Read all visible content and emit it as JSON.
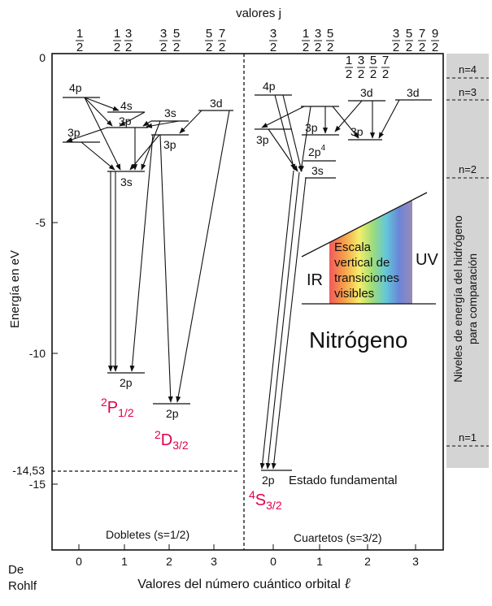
{
  "top_label": "valores j",
  "j_groups_doublets": [
    {
      "nums": [
        "1"
      ],
      "den": "2"
    },
    {
      "nums": [
        "1",
        "3"
      ],
      "den": "2"
    },
    {
      "nums": [
        "3",
        "5"
      ],
      "den": "2"
    },
    {
      "nums": [
        "5",
        "7"
      ],
      "den": "2"
    }
  ],
  "j_groups_quartets": [
    {
      "nums": [
        "3"
      ],
      "den": "2"
    },
    {
      "nums": [
        "1",
        "3",
        "5"
      ],
      "den": "2"
    },
    {
      "nums": [
        "3",
        "5",
        "7",
        "9"
      ],
      "den": "2"
    }
  ],
  "j_inner_group": {
    "nums": [
      "1",
      "3",
      "5",
      "7"
    ],
    "den": "2"
  },
  "y_axis": {
    "label": "Energía en eV",
    "ticks": [
      "0",
      "-5",
      "-10",
      "-14,53",
      "-15"
    ]
  },
  "x_axis": {
    "label": "Valores del número cuántico orbital",
    "ell": "ℓ",
    "ticks_doublets": [
      "0",
      "1",
      "2",
      "3"
    ],
    "ticks_quartets": [
      "0",
      "1",
      "2",
      "3"
    ]
  },
  "credit": {
    "line1": "De",
    "line2": "Rohlf"
  },
  "right_panel": {
    "label_line1": "Niveles de energía del hidrógeno",
    "label_line2": "para comparación",
    "levels": [
      "n=4",
      "n=3",
      "n=2",
      "n=1"
    ]
  },
  "levels_doublets": {
    "l0": [
      "4p",
      "3p"
    ],
    "l1": [
      "4s",
      "3p",
      "3s",
      "2p"
    ],
    "l2": [
      "3s",
      "3p",
      "2p"
    ]
  },
  "level_3d_doublets": "3d",
  "levels_quartets": {
    "l0": [
      "4p",
      "3p"
    ],
    "l1": [
      "3p",
      "3s",
      "2p"
    ],
    "l2": [
      "3d",
      "3p"
    ],
    "l3": [
      "3d"
    ]
  },
  "superscript_4": "4",
  "term_labels": {
    "p": {
      "sup": "2",
      "letter": "P",
      "sub": "1/2"
    },
    "d": {
      "sup": "2",
      "letter": "D",
      "sub": "3/2"
    },
    "s": {
      "sup": "4",
      "letter": "S",
      "sub": "3/2"
    }
  },
  "ground_state": "Estado fundamental",
  "element": "Nitrógeno",
  "section_doublets": "Dobletes (s=1/2)",
  "section_quartets": "Cuartetos (s=3/2)",
  "spectrum_inset": {
    "ir": "IR",
    "uv": "UV",
    "line1": "Escala",
    "line2": "vertical de",
    "line3": "transiciones",
    "line4": "visibles"
  }
}
